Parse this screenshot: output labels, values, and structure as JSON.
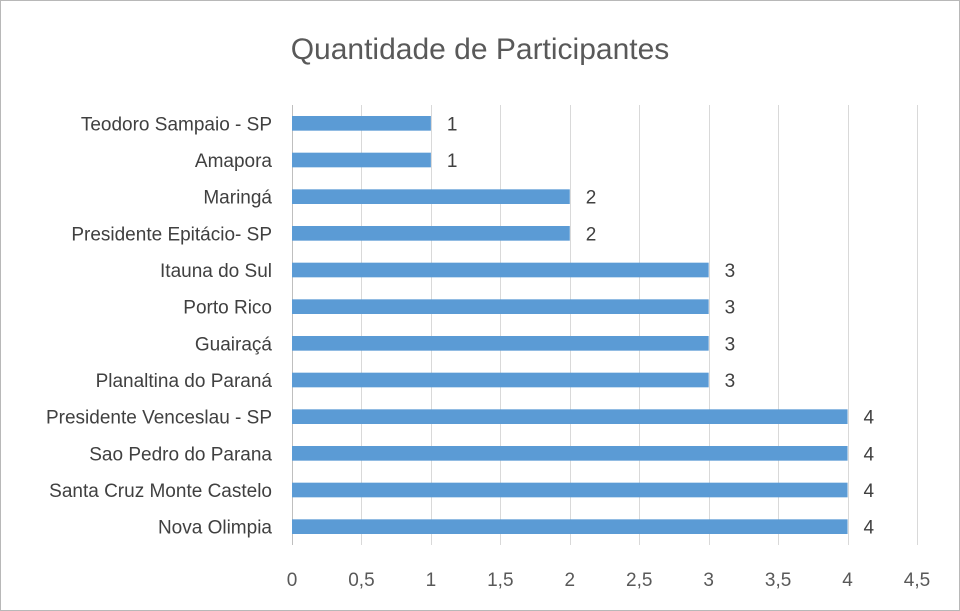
{
  "chart_data": {
    "type": "bar",
    "orientation": "horizontal",
    "title": "Quantidade de Participantes",
    "categories": [
      "Teodoro Sampaio - SP",
      "Amapora",
      "Maringá",
      "Presidente Epitácio- SP",
      "Itauna do Sul",
      "Porto Rico",
      "Guairaçá",
      "Planaltina do Paraná",
      "Presidente Venceslau - SP",
      "Sao Pedro do Parana",
      "Santa Cruz Monte Castelo",
      "Nova Olimpia"
    ],
    "values": [
      1,
      1,
      2,
      2,
      3,
      3,
      3,
      3,
      4,
      4,
      4,
      4
    ],
    "xlim": [
      0,
      4.5
    ],
    "xticks": [
      "0",
      "0,5",
      "1",
      "1,5",
      "2",
      "2,5",
      "3",
      "3,5",
      "4",
      "4,5"
    ],
    "grid": true,
    "bar_color": "#5b9bd5",
    "data_labels": true
  }
}
